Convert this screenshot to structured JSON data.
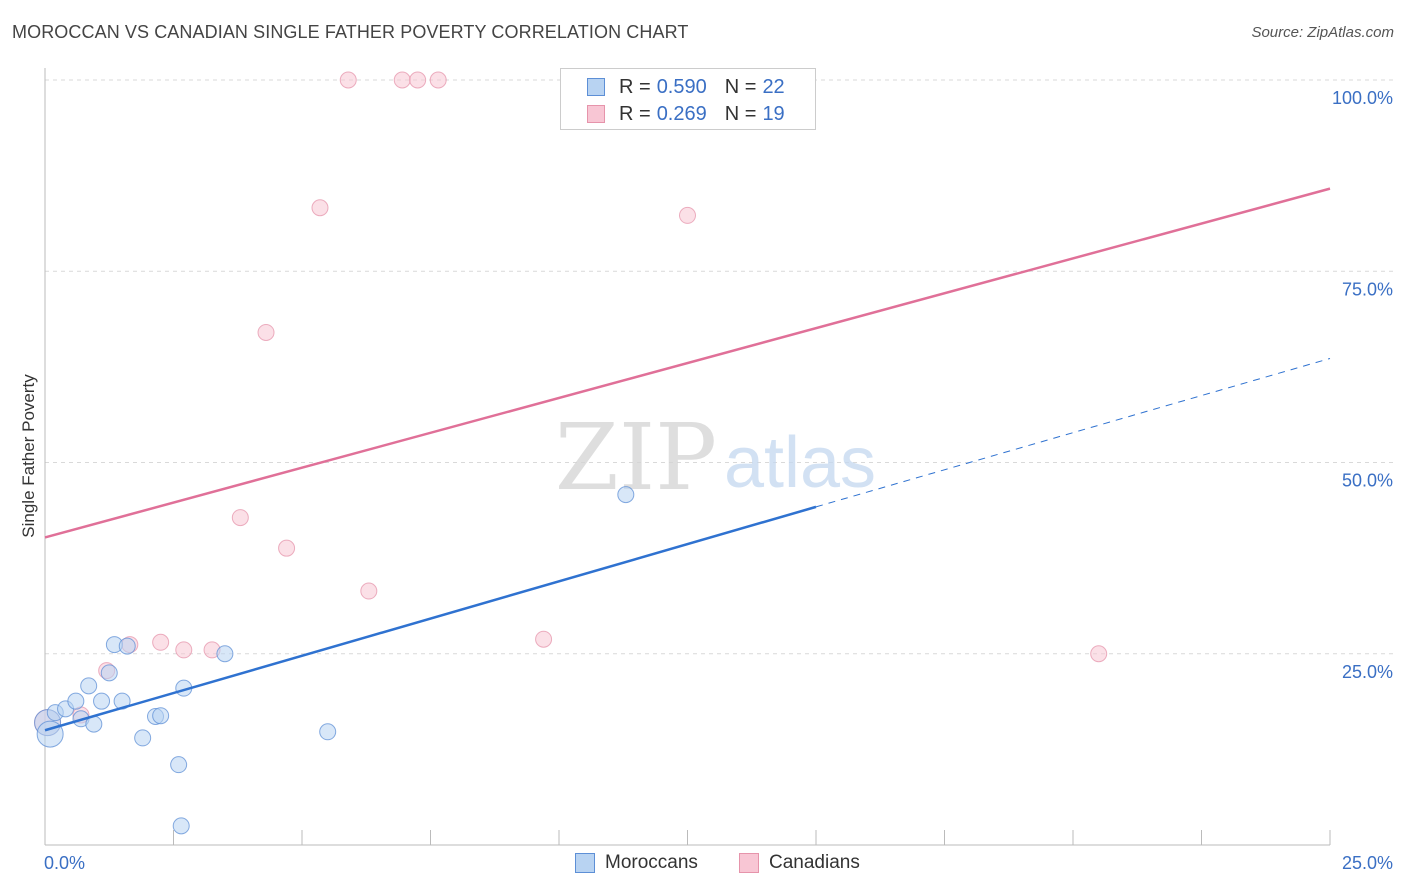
{
  "title": "MOROCCAN VS CANADIAN SINGLE FATHER POVERTY CORRELATION CHART",
  "source": "Source: ZipAtlas.com",
  "watermark": {
    "zip": "ZIP",
    "atlas": "atlas"
  },
  "colors": {
    "moroccans_fill": "#b8d3f2",
    "moroccans_stroke": "#5d8fd6",
    "moroccans_line": "#2f72d0",
    "canadians_fill": "#f8c6d4",
    "canadians_stroke": "#e694ab",
    "canadians_line": "#e07098",
    "axis_label": "#3a6fc4",
    "grid": "#d9d9d9"
  },
  "stats": [
    {
      "r_label": "R =",
      "r_value": "0.590",
      "n_label": "N =",
      "n_value": "22"
    },
    {
      "r_label": "R =",
      "r_value": "0.269",
      "n_label": "N =",
      "n_value": "19"
    }
  ],
  "chart_data": {
    "type": "scatter",
    "title": "MOROCCAN VS CANADIAN SINGLE FATHER POVERTY CORRELATION CHART",
    "xlabel": "",
    "ylabel": "Single Father Poverty",
    "xlim": [
      0,
      25
    ],
    "ylim": [
      0,
      100
    ],
    "x_ticks": [
      0,
      2.5,
      5,
      7.5,
      10,
      12.5,
      15,
      17.5,
      20,
      22.5,
      25
    ],
    "x_tick_labels": {
      "min": "0.0%",
      "max": "25.0%"
    },
    "y_ticks": [
      25,
      50,
      75,
      100
    ],
    "y_tick_labels": [
      "25.0%",
      "50.0%",
      "75.0%",
      "100.0%"
    ],
    "grid": true,
    "legend_position": "bottom-center",
    "series": [
      {
        "name": "Moroccans",
        "points": [
          [
            0.05,
            16.0
          ],
          [
            0.1,
            14.5
          ],
          [
            0.2,
            17.3
          ],
          [
            0.4,
            17.8
          ],
          [
            0.6,
            18.8
          ],
          [
            0.7,
            16.5
          ],
          [
            0.85,
            20.8
          ],
          [
            0.95,
            15.8
          ],
          [
            1.1,
            18.8
          ],
          [
            1.25,
            22.5
          ],
          [
            1.35,
            26.2
          ],
          [
            1.5,
            18.8
          ],
          [
            1.6,
            26.0
          ],
          [
            1.9,
            14.0
          ],
          [
            2.15,
            16.8
          ],
          [
            2.25,
            16.9
          ],
          [
            2.7,
            20.5
          ],
          [
            2.6,
            10.5
          ],
          [
            2.65,
            2.5
          ],
          [
            3.5,
            25.0
          ],
          [
            5.5,
            14.8
          ],
          [
            11.3,
            45.8
          ]
        ],
        "trend": {
          "x0": 0,
          "y0": 15.0,
          "x1": 15.0,
          "y1": 44.2,
          "dash_x1": 25,
          "dash_y1": 63.6
        }
      },
      {
        "name": "Canadians",
        "points": [
          [
            0.05,
            16.0
          ],
          [
            0.7,
            17.0
          ],
          [
            1.2,
            22.8
          ],
          [
            1.65,
            26.2
          ],
          [
            2.25,
            26.5
          ],
          [
            2.7,
            25.5
          ],
          [
            3.25,
            25.5
          ],
          [
            3.8,
            42.8
          ],
          [
            4.3,
            67.0
          ],
          [
            4.7,
            38.8
          ],
          [
            5.35,
            83.3
          ],
          [
            5.9,
            100.0
          ],
          [
            6.3,
            33.2
          ],
          [
            6.95,
            100.0
          ],
          [
            7.25,
            100.0
          ],
          [
            7.65,
            100.0
          ],
          [
            9.7,
            26.9
          ],
          [
            12.5,
            82.3
          ],
          [
            20.5,
            25.0
          ]
        ],
        "trend": {
          "x0": 0,
          "y0": 40.2,
          "x1": 25,
          "y1": 85.8
        }
      }
    ]
  }
}
